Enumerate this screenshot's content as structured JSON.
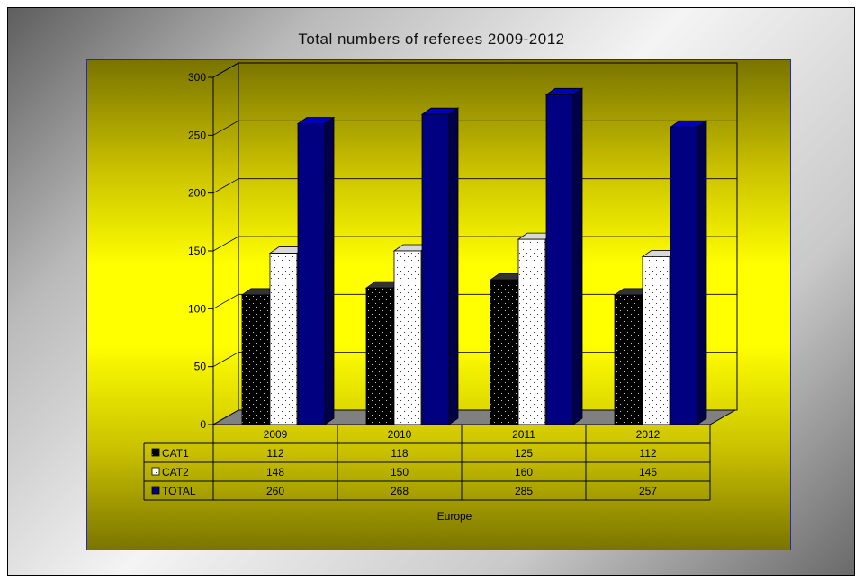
{
  "chart_data": {
    "type": "bar",
    "title": "Total numbers of referees 2009-2012",
    "xlabel": "Europe",
    "ylabel": "",
    "ylim": [
      0,
      300
    ],
    "yticks": [
      0,
      50,
      100,
      150,
      200,
      250,
      300
    ],
    "categories": [
      "2009",
      "2010",
      "2011",
      "2012"
    ],
    "series": [
      {
        "name": "CAT1",
        "values": [
          112,
          118,
          125,
          112
        ],
        "color": "#000000",
        "pattern": "dotted-white-on-black"
      },
      {
        "name": "CAT2",
        "values": [
          148,
          150,
          160,
          145
        ],
        "color": "#ffffff",
        "pattern": "dotted-black-on-white"
      },
      {
        "name": "TOTAL",
        "values": [
          260,
          268,
          285,
          257
        ],
        "color": "#000080",
        "pattern": "solid"
      }
    ],
    "grid": true,
    "legend": "data-table-left",
    "three_d": true
  },
  "colors": {
    "plot_gradient": [
      "#797400",
      "#ffff00"
    ],
    "plot_border": "#2424c8",
    "floor": "#808080"
  }
}
